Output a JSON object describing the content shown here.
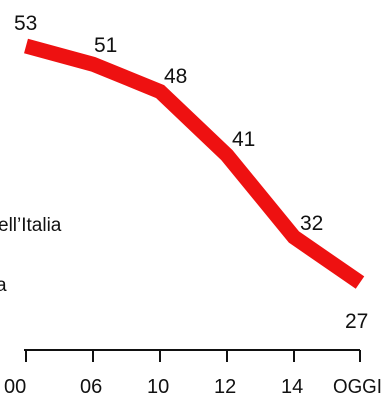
{
  "chart_data": {
    "type": "line",
    "x": [
      "00",
      "06",
      "10",
      "12",
      "14",
      "OGGI"
    ],
    "series": [
      {
        "values": [
          53,
          51,
          48,
          41,
          32,
          27
        ]
      }
    ],
    "data_labels": [
      "53",
      "51",
      "48",
      "41",
      "32",
      "27"
    ],
    "tick_labels": [
      "00",
      "06",
      "10",
      "12",
      "14",
      "OGGI"
    ],
    "side_text": [
      "ell’Italia",
      "a"
    ],
    "line_color": "#ee1111",
    "axis_color": "#111111",
    "grid": false,
    "legend": "none"
  }
}
